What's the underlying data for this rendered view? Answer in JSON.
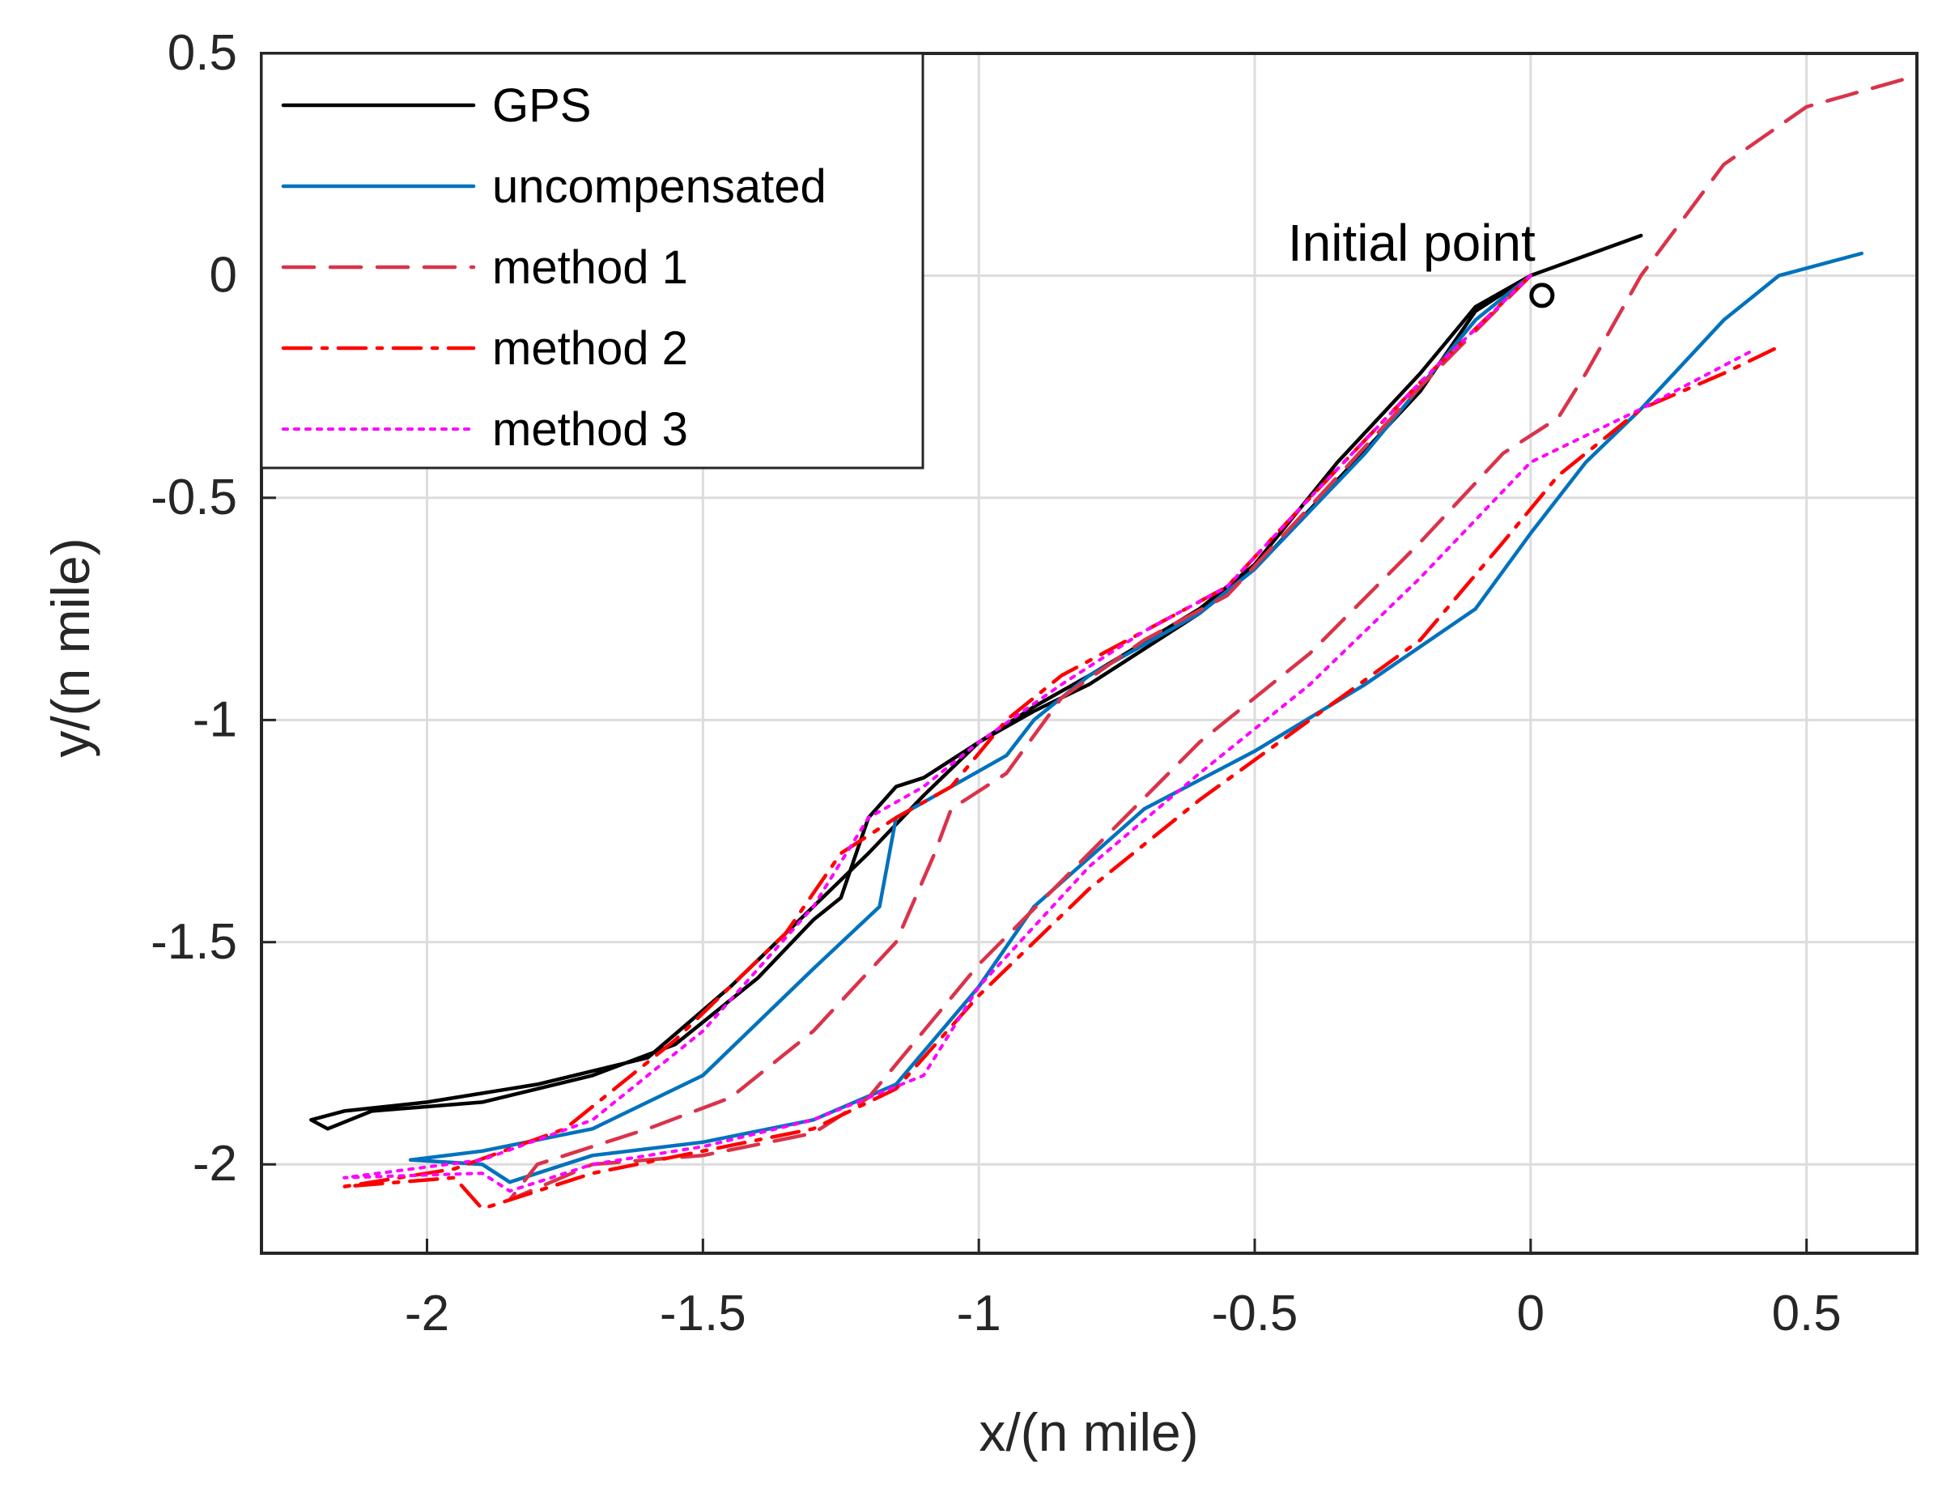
{
  "chart_data": {
    "type": "line",
    "title": "",
    "xlabel": "x/(n mile)",
    "ylabel": "y/(n mile)",
    "xlim": [
      -2.3,
      0.7
    ],
    "ylim": [
      -2.2,
      0.5
    ],
    "xticks": [
      -2,
      -1.5,
      -1,
      -0.5,
      0,
      0.5
    ],
    "xtick_labels": [
      "-2",
      "-1.5",
      "-1",
      "-0.5",
      "0",
      "0.5"
    ],
    "yticks": [
      0.5,
      0,
      -0.5,
      -1,
      -1.5,
      -2
    ],
    "ytick_labels": [
      "0.5",
      "0",
      "-0.5",
      "-1",
      "-1.5",
      "-2"
    ],
    "grid": true,
    "legend_position": "top-left",
    "annotation": {
      "text": "Initial point",
      "x": 0.0,
      "y": -0.03,
      "marker": "o"
    },
    "series": [
      {
        "name": "GPS",
        "color": "#000000",
        "style": "solid",
        "x": [
          0.2,
          0.0,
          -0.1,
          -0.2,
          -0.35,
          -0.5,
          -0.6,
          -0.8,
          -0.9,
          -1.0,
          -1.1,
          -1.2,
          -1.3,
          -1.45,
          -1.6,
          -1.8,
          -2.0,
          -2.15,
          -2.21,
          -2.18,
          -2.1,
          -1.9,
          -1.7,
          -1.55,
          -1.4,
          -1.3,
          -1.25,
          -1.2,
          -1.15,
          -1.1,
          -1.0,
          -0.9,
          -0.8,
          -0.6,
          -0.5,
          -0.35,
          -0.2,
          -0.1,
          0.0
        ],
        "y": [
          0.09,
          0.0,
          -0.07,
          -0.22,
          -0.42,
          -0.65,
          -0.75,
          -0.9,
          -0.97,
          -1.05,
          -1.17,
          -1.3,
          -1.42,
          -1.6,
          -1.76,
          -1.82,
          -1.86,
          -1.88,
          -1.9,
          -1.92,
          -1.88,
          -1.86,
          -1.8,
          -1.73,
          -1.58,
          -1.45,
          -1.4,
          -1.22,
          -1.15,
          -1.13,
          -1.05,
          -0.98,
          -0.92,
          -0.76,
          -0.66,
          -0.46,
          -0.26,
          -0.08,
          0.0
        ]
      },
      {
        "name": "uncompensated",
        "color": "#0072BD",
        "style": "solid",
        "x": [
          0.0,
          -0.1,
          -0.3,
          -0.5,
          -0.6,
          -0.8,
          -0.9,
          -0.95,
          -1.05,
          -1.15,
          -1.18,
          -1.3,
          -1.5,
          -1.7,
          -1.9,
          -2.03,
          -1.9,
          -1.85,
          -1.7,
          -1.5,
          -1.3,
          -1.15,
          -1.0,
          -0.9,
          -0.7,
          -0.5,
          -0.3,
          -0.1,
          0.0,
          0.05,
          0.1,
          0.2,
          0.35,
          0.45,
          0.6
        ],
        "y": [
          0.0,
          -0.1,
          -0.4,
          -0.66,
          -0.76,
          -0.9,
          -1.0,
          -1.08,
          -1.15,
          -1.22,
          -1.42,
          -1.56,
          -1.8,
          -1.92,
          -1.97,
          -1.99,
          -2.0,
          -2.04,
          -1.98,
          -1.95,
          -1.9,
          -1.82,
          -1.6,
          -1.42,
          -1.2,
          -1.07,
          -0.92,
          -0.75,
          -0.58,
          -0.5,
          -0.42,
          -0.3,
          -0.1,
          0.0,
          0.05
        ]
      },
      {
        "name": "method 1",
        "color": "#D9334A",
        "style": "dashed",
        "x": [
          0.0,
          -0.2,
          -0.4,
          -0.55,
          -0.7,
          -0.85,
          -0.95,
          -1.05,
          -1.08,
          -1.15,
          -1.3,
          -1.45,
          -1.6,
          -1.8,
          -1.85,
          -1.7,
          -1.5,
          -1.3,
          -1.2,
          -1.0,
          -0.8,
          -0.6,
          -0.4,
          -0.2,
          -0.05,
          0.05,
          0.1,
          0.2,
          0.35,
          0.5,
          0.7
        ],
        "y": [
          0.0,
          -0.25,
          -0.52,
          -0.72,
          -0.82,
          -0.95,
          -1.12,
          -1.2,
          -1.3,
          -1.5,
          -1.7,
          -1.85,
          -1.92,
          -2.0,
          -2.08,
          -2.0,
          -1.98,
          -1.93,
          -1.85,
          -1.55,
          -1.3,
          -1.05,
          -0.85,
          -0.6,
          -0.4,
          -0.32,
          -0.22,
          0.0,
          0.25,
          0.38,
          0.45
        ]
      },
      {
        "name": "method 2",
        "color": "#FF0000",
        "style": "dashdot",
        "x": [
          0.0,
          -0.2,
          -0.4,
          -0.55,
          -0.7,
          -0.85,
          -0.95,
          -1.05,
          -1.15,
          -1.25,
          -1.35,
          -1.55,
          -1.75,
          -1.95,
          -2.15,
          -1.95,
          -1.9,
          -1.7,
          -1.5,
          -1.3,
          -1.15,
          -1.0,
          -0.8,
          -0.6,
          -0.4,
          -0.2,
          -0.05,
          0.05,
          0.2,
          0.35,
          0.45
        ],
        "y": [
          0.0,
          -0.24,
          -0.5,
          -0.7,
          -0.8,
          -0.9,
          -1.0,
          -1.15,
          -1.22,
          -1.3,
          -1.48,
          -1.72,
          -1.92,
          -2.01,
          -2.05,
          -2.03,
          -2.1,
          -2.02,
          -1.97,
          -1.92,
          -1.83,
          -1.62,
          -1.38,
          -1.18,
          -1.0,
          -0.82,
          -0.6,
          -0.45,
          -0.3,
          -0.22,
          -0.16
        ]
      },
      {
        "name": "method 3",
        "color": "#FF00FF",
        "style": "dotted",
        "x": [
          0.0,
          -0.2,
          -0.4,
          -0.55,
          -0.7,
          -0.85,
          -1.0,
          -1.1,
          -1.2,
          -1.3,
          -1.5,
          -1.7,
          -1.9,
          -2.15,
          -1.9,
          -1.85,
          -1.7,
          -1.5,
          -1.3,
          -1.1,
          -1.0,
          -0.8,
          -0.6,
          -0.4,
          -0.2,
          0.0,
          0.2,
          0.4
        ],
        "y": [
          0.0,
          -0.24,
          -0.5,
          -0.7,
          -0.8,
          -0.92,
          -1.05,
          -1.15,
          -1.22,
          -1.42,
          -1.7,
          -1.9,
          -1.99,
          -2.03,
          -2.02,
          -2.06,
          -2.0,
          -1.96,
          -1.9,
          -1.8,
          -1.6,
          -1.33,
          -1.12,
          -0.92,
          -0.68,
          -0.42,
          -0.3,
          -0.17
        ]
      }
    ]
  }
}
